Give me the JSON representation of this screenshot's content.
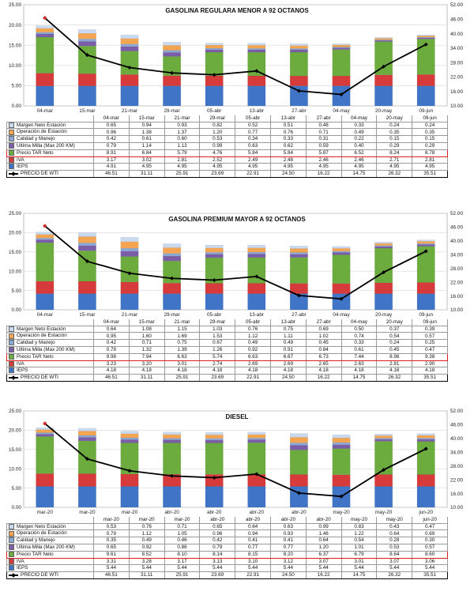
{
  "chart_data": [
    {
      "type": "bar",
      "title": "GASOLINA REGULARA MENOR A 92 OCTANOS",
      "stacked": true,
      "categories": [
        "04-mar",
        "15-mar",
        "21-mar",
        "29-mar",
        "05-abr",
        "13-abr",
        "27-abr",
        "04-may",
        "20-may",
        "09-jun"
      ],
      "ylim": [
        0,
        25
      ],
      "y_ticks": [
        "0.00",
        "5.00",
        "10.00",
        "15.00",
        "20.00",
        "25.00"
      ],
      "y2lim": [
        10,
        52
      ],
      "y2_ticks": [
        "10.00",
        "16.00",
        "22.00",
        "28.00",
        "34.00",
        "40.00",
        "46.00",
        "52.00"
      ],
      "series": [
        {
          "name": "Margen Neto Estación",
          "color": "#c9d9ef",
          "values": [
            "0.65",
            "0.94",
            "0.93",
            "0.82",
            "0.52",
            "0.51",
            "0.48",
            "0.33",
            "0.24",
            "0.24"
          ]
        },
        {
          "name": "Operación de Estación",
          "color": "#f4a552",
          "values": [
            "0.96",
            "1.38",
            "1.37",
            "1.20",
            "0.77",
            "0.76",
            "0.71",
            "0.49",
            "0.35",
            "0.35"
          ]
        },
        {
          "name": "Calidad y Manejo",
          "color": "#8aa9d6",
          "values": [
            "0.42",
            "0.61",
            "0.60",
            "0.53",
            "0.34",
            "0.33",
            "0.31",
            "0.22",
            "0.15",
            "0.15"
          ]
        },
        {
          "name": "Última Milla (Max 200 KM)",
          "color": "#7b5ea7",
          "values": [
            "0.79",
            "1.14",
            "1.13",
            "0.99",
            "0.63",
            "0.62",
            "0.59",
            "0.40",
            "0.29",
            "0.29"
          ]
        },
        {
          "name": "Precio TAR Neto",
          "color": "#6cab3e",
          "values": [
            "8.91",
            "6.84",
            "5.79",
            "4.76",
            "5.84",
            "5.84",
            "5.87",
            "6.52",
            "8.24",
            "8.78"
          ]
        },
        {
          "name": "IVA",
          "color": "#d63a3a",
          "values": [
            "3.17",
            "3.02",
            "2.81",
            "2.52",
            "2.49",
            "2.48",
            "2.46",
            "2.46",
            "2.71",
            "2.81"
          ]
        },
        {
          "name": "IEPS",
          "color": "#3f74c6",
          "values": [
            "4.91",
            "4.95",
            "4.95",
            "4.95",
            "4.95",
            "4.95",
            "4.95",
            "4.95",
            "4.95",
            "4.95"
          ]
        }
      ],
      "line": {
        "name": "PRECIO DE WTI",
        "axis": "secondary",
        "values": [
          "46.51",
          "31.11",
          "25.91",
          "23.69",
          "22.91",
          "24.50",
          "16.22",
          "14.75",
          "26.32",
          "35.51"
        ]
      }
    },
    {
      "type": "bar",
      "title": "GASOLINA PREMIUM MAYOR A 92 OCTANOS",
      "stacked": true,
      "categories": [
        "04-mar",
        "15-mar",
        "21-mar",
        "29-mar",
        "05-abr",
        "13-abr",
        "27-abr",
        "04-may",
        "20-may",
        "09-jun"
      ],
      "ylim": [
        0,
        25
      ],
      "y_ticks": [
        "0.00",
        "5.00",
        "10.00",
        "15.00",
        "20.00",
        "25.00"
      ],
      "y2lim": [
        10,
        52
      ],
      "y2_ticks": [
        "10.00",
        "16.00",
        "22.00",
        "28.00",
        "34.00",
        "40.00",
        "46.00",
        "52.00"
      ],
      "series": [
        {
          "name": "Margen Neto Estación",
          "color": "#c9d9ef",
          "values": [
            "0.64",
            "1.08",
            "1.15",
            "1.03",
            "0.76",
            "0.75",
            "0.69",
            "0.50",
            "0.37",
            "0.39"
          ]
        },
        {
          "name": "Operación de Estación",
          "color": "#f4a552",
          "values": [
            "0.95",
            "1.60",
            "1.69",
            "1.53",
            "1.12",
            "1.11",
            "1.02",
            "0.74",
            "0.54",
            "0.57"
          ]
        },
        {
          "name": "Calidad y Manejo",
          "color": "#8aa9d6",
          "values": [
            "0.42",
            "0.71",
            "0.75",
            "0.67",
            "0.49",
            "0.49",
            "0.45",
            "0.33",
            "0.24",
            "0.25"
          ]
        },
        {
          "name": "Última Milla (Max 200 KM)",
          "color": "#7b5ea7",
          "values": [
            "0.78",
            "1.32",
            "1.39",
            "1.26",
            "0.92",
            "0.91",
            "0.84",
            "0.61",
            "0.45",
            "0.47"
          ]
        },
        {
          "name": "Precio TAR Neto",
          "color": "#6cab3e",
          "values": [
            "9.98",
            "7.94",
            "6.63",
            "5.74",
            "6.63",
            "6.67",
            "6.73",
            "7.44",
            "8.98",
            "9.38"
          ]
        },
        {
          "name": "IVA",
          "color": "#d63a3a",
          "values": [
            "3.23",
            "3.20",
            "3.01",
            "2.74",
            "2.69",
            "2.69",
            "2.65",
            "2.63",
            "2.81",
            "2.90"
          ]
        },
        {
          "name": "IEPS",
          "color": "#3f74c6",
          "values": [
            "4.18",
            "4.18",
            "4.18",
            "4.18",
            "4.18",
            "4.18",
            "4.18",
            "4.18",
            "4.18",
            "4.18"
          ]
        }
      ],
      "line": {
        "name": "PRECIO DE WTI",
        "axis": "secondary",
        "values": [
          "46.51",
          "31.11",
          "25.91",
          "23.69",
          "22.91",
          "24.50",
          "16.22",
          "14.75",
          "26.32",
          "35.51"
        ]
      }
    },
    {
      "type": "bar",
      "title": "DIESEL",
      "stacked": true,
      "categories": [
        "mar-20",
        "mar-20",
        "mar-20",
        "abr-20",
        "abr-20",
        "abr-20",
        "abr-20",
        "may-20",
        "may-20",
        "jun-20"
      ],
      "ylim": [
        0,
        25
      ],
      "y_ticks": [
        "0.00",
        "5.00",
        "10.00",
        "15.00",
        "20.00",
        "25.00"
      ],
      "y2lim": [
        10,
        52
      ],
      "y2_ticks": [
        "10.00",
        "16.00",
        "22.00",
        "28.00",
        "34.00",
        "40.00",
        "46.00",
        "52.00"
      ],
      "series": [
        {
          "name": "Margen Neto Estación",
          "color": "#c9d9ef",
          "values": [
            "0.53",
            "0.76",
            "0.71",
            "0.65",
            "0.64",
            "0.63",
            "0.99",
            "0.83",
            "0.43",
            "0.47"
          ]
        },
        {
          "name": "Operación de Estación",
          "color": "#f4a552",
          "values": [
            "0.79",
            "1.12",
            "1.05",
            "0.96",
            "0.94",
            "0.93",
            "1.46",
            "1.22",
            "0.64",
            "0.69"
          ]
        },
        {
          "name": "Calidad y Manejo",
          "color": "#8aa9d6",
          "values": [
            "0.35",
            "0.49",
            "0.46",
            "0.42",
            "0.41",
            "0.41",
            "0.64",
            "0.54",
            "0.28",
            "0.30"
          ]
        },
        {
          "name": "Última Milla (Max 200 KM)",
          "color": "#7b5ea7",
          "values": [
            "0.65",
            "0.92",
            "0.86",
            "0.79",
            "0.77",
            "0.77",
            "1.20",
            "1.01",
            "0.53",
            "0.57"
          ]
        },
        {
          "name": "Precio TAR Neto",
          "color": "#6cab3e",
          "values": [
            "9.61",
            "8.52",
            "8.10",
            "8.14",
            "8.15",
            "8.20",
            "6.37",
            "6.79",
            "8.64",
            "8.60"
          ]
        },
        {
          "name": "IVA",
          "color": "#d63a3a",
          "values": [
            "3.31",
            "3.28",
            "3.17",
            "3.13",
            "3.10",
            "3.12",
            "3.07",
            "3.01",
            "3.07",
            "3.06"
          ]
        },
        {
          "name": "IEPS",
          "color": "#3f74c6",
          "values": [
            "5.44",
            "5.44",
            "5.44",
            "5.44",
            "5.44",
            "5.44",
            "5.44",
            "5.44",
            "5.44",
            "5.44"
          ]
        }
      ],
      "line": {
        "name": "PRECIO DE WTI",
        "axis": "secondary",
        "values": [
          "46.51",
          "31.11",
          "25.91",
          "23.69",
          "22.91",
          "24.50",
          "16.22",
          "14.75",
          "26.32",
          "35.51"
        ]
      }
    }
  ]
}
